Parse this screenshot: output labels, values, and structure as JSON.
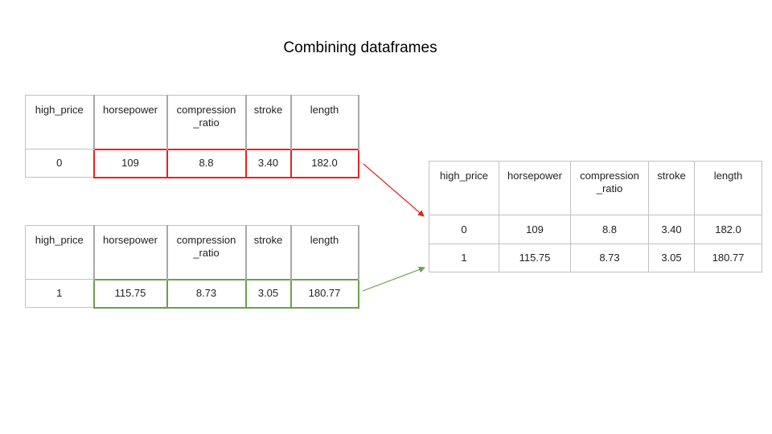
{
  "title": "Combining dataframes",
  "columns": [
    "high_price",
    "horsepower",
    "compression\n_ratio",
    "stroke",
    "length"
  ],
  "table_top": {
    "row": [
      "0",
      "109",
      "8.8",
      "3.40",
      "182.0"
    ]
  },
  "table_bottom": {
    "row": [
      "1",
      "115.75",
      "8.73",
      "3.05",
      "180.77"
    ]
  },
  "table_result": {
    "rows": [
      [
        "0",
        "109",
        "8.8",
        "3.40",
        "182.0"
      ],
      [
        "1",
        "115.75",
        "8.73",
        "3.05",
        "180.77"
      ]
    ]
  },
  "colors": {
    "top_highlight": "#e02525",
    "bottom_highlight": "#6ba04b",
    "grid": "#c2c2c2"
  }
}
